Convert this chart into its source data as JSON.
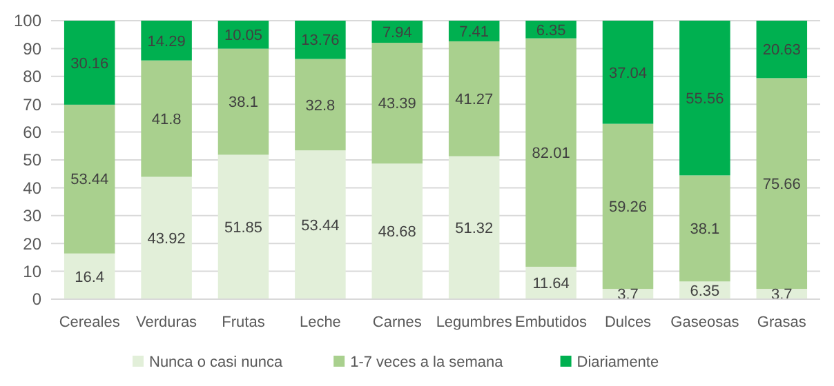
{
  "chart_data": {
    "type": "bar",
    "stacked": true,
    "categories": [
      "Cereales",
      "Verduras",
      "Frutas",
      "Leche",
      "Carnes",
      "Legumbres",
      "Embutidos",
      "Dulces",
      "Gaseosas",
      "Grasas"
    ],
    "series": [
      {
        "name": "Nunca o casi nunca",
        "color": "#e2efd9",
        "values": [
          16.4,
          43.92,
          51.85,
          53.44,
          48.68,
          51.32,
          11.64,
          3.7,
          6.35,
          3.7
        ]
      },
      {
        "name": "1-7 veces a la semana",
        "color": "#a9d08e",
        "values": [
          53.44,
          41.8,
          38.1,
          32.8,
          43.39,
          41.27,
          82.01,
          59.26,
          38.1,
          75.66
        ]
      },
      {
        "name": "Diariamente",
        "color": "#00b050",
        "values": [
          30.16,
          14.29,
          10.05,
          13.76,
          7.94,
          7.41,
          6.35,
          37.04,
          55.56,
          20.63
        ]
      }
    ],
    "ylim": [
      0,
      100
    ],
    "yticks": [
      0,
      10,
      20,
      30,
      40,
      50,
      60,
      70,
      80,
      90,
      100
    ],
    "grid": "y",
    "legend": "bottom",
    "data_labels": true
  }
}
